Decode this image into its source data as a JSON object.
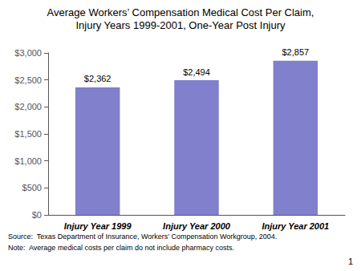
{
  "chart_data": {
    "type": "bar",
    "title": "Average Workers’ Compensation Medical Cost Per Claim,",
    "subtitle": "Injury Years 1999-2001, One-Year Post Injury",
    "categories": [
      "Injury Year 1999",
      "Injury Year 2000",
      "Injury Year 2001"
    ],
    "values": [
      2362,
      2494,
      2857
    ],
    "value_labels": [
      "$2,362",
      "$2,494",
      "$2,857"
    ],
    "data_labels": true,
    "color": "#8080CC",
    "ylim": [
      0,
      3000
    ],
    "yticks": [
      {
        "value": 0,
        "label": "$0"
      },
      {
        "value": 500,
        "label": "$500"
      },
      {
        "value": 1000,
        "label": "$1,000"
      },
      {
        "value": 1500,
        "label": "$1,500"
      },
      {
        "value": 2000,
        "label": "$2,000"
      },
      {
        "value": 2500,
        "label": "$2,500"
      },
      {
        "value": 3000,
        "label": "$3,000"
      }
    ],
    "grid": false,
    "annotations": [
      "Source:  Texas Department of Insurance, Workers’ Compensation Workgroup, 2004.",
      "Note:  Average medical costs per claim do not include pharmacy costs.",
      "1"
    ]
  }
}
